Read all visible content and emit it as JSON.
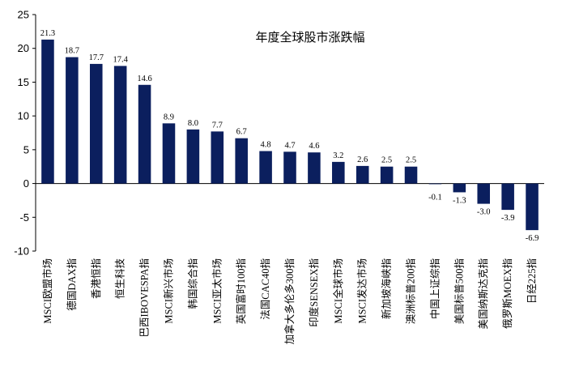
{
  "chart_data": {
    "type": "bar",
    "title": "年度全球股市涨跌幅",
    "xlabel": "",
    "ylabel": "",
    "ylim": [
      -10,
      25
    ],
    "yticks": [
      -10,
      -5,
      0,
      5,
      10,
      15,
      20,
      25
    ],
    "grid": false,
    "bar_color": "#0b1f5e",
    "categories": [
      "MSCI欧盟市场",
      "德国DAX指",
      "香港恒指",
      "恒生科技",
      "巴西IBOVESPA指",
      "MSCI新兴市场",
      "韩国综合指",
      "MSCI亚太市场",
      "英国富时100指",
      "法国CAC40指",
      "加拿大多伦多300指",
      "印度SENSEX指",
      "MSCI全球市场",
      "MSCI发达市场",
      "新加坡海峡指",
      "澳洲标普200指",
      "中国上证综指",
      "美国标普500指",
      "美国纳斯达克指",
      "俄罗斯MOEX指",
      "日经225指"
    ],
    "values": [
      21.3,
      18.7,
      17.7,
      17.4,
      14.6,
      8.9,
      8.0,
      7.7,
      6.7,
      4.8,
      4.7,
      4.6,
      3.2,
      2.6,
      2.5,
      2.5,
      -0.1,
      -1.3,
      -3.0,
      -3.9,
      -6.9
    ],
    "value_labels": [
      "21.3",
      "18.7",
      "17.7",
      "17.4",
      "14.6",
      "8.9",
      "8.0",
      "7.7",
      "6.7",
      "4.8",
      "4.7",
      "4.6",
      "3.2",
      "2.6",
      "2.5",
      "2.5",
      "-0.1",
      "-1.3",
      "-3.0",
      "-3.9",
      "-6.9"
    ]
  }
}
